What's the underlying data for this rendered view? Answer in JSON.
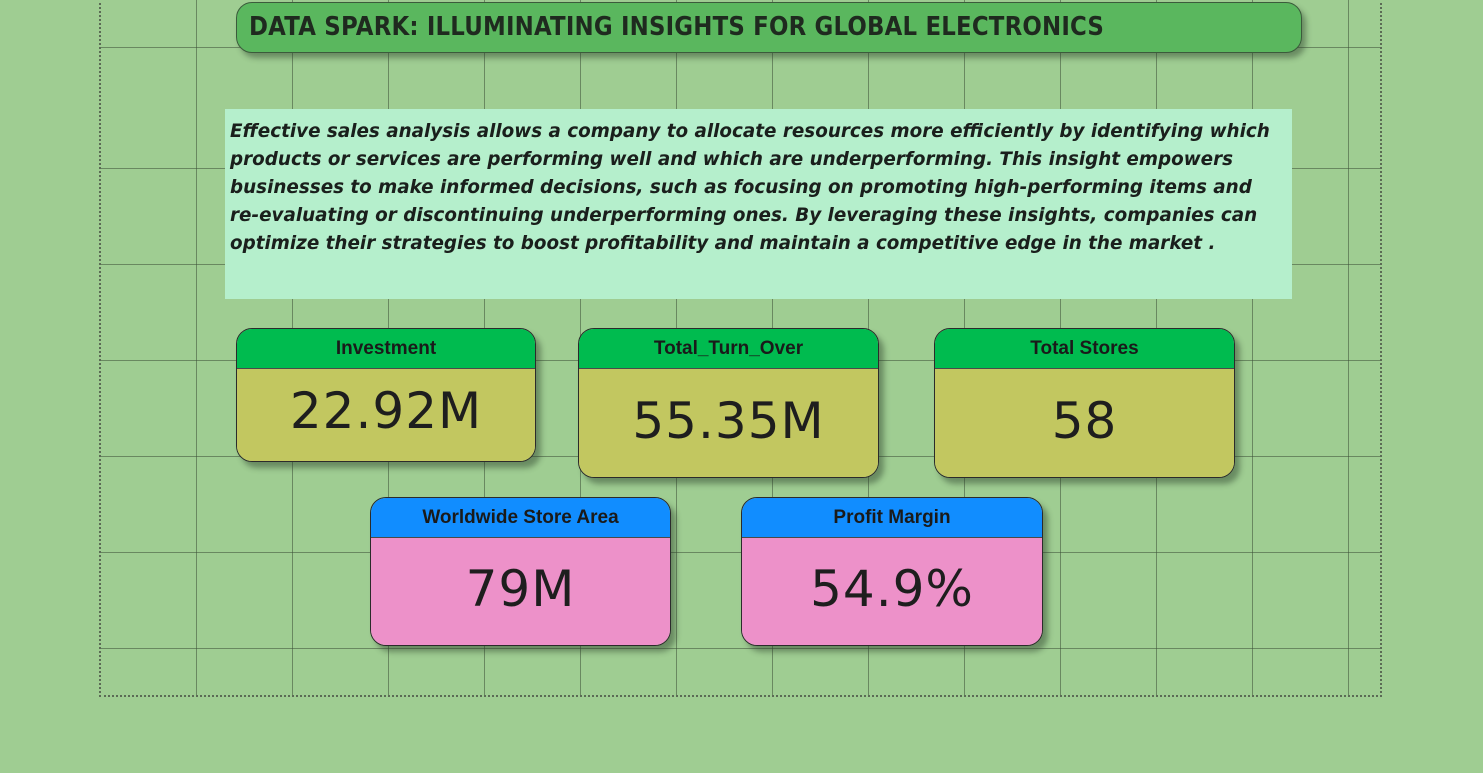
{
  "title": "DATA SPARK: ILLUMINATING INSIGHTS FOR GLOBAL ELECTRONICS",
  "description": "Effective sales analysis allows a company to allocate resources more efficiently by identifying which products or services are performing well and which are underperforming. This insight empowers businesses to make informed decisions, such as focusing on promoting high-performing items and re-evaluating or discontinuing underperforming ones. By leveraging these insights, companies can optimize their strategies to boost profitability and maintain a competitive edge in the market .",
  "kpis": [
    {
      "label": "Investment",
      "value": "22.92M"
    },
    {
      "label": "Total_Turn_Over",
      "value": "55.35M"
    },
    {
      "label": "Total Stores",
      "value": "58"
    },
    {
      "label": "Worldwide Store Area",
      "value": "79M"
    },
    {
      "label": "Profit Margin",
      "value": "54.9%"
    }
  ],
  "colors": {
    "background": "#9fcd92",
    "title_bar": "#5ab75e",
    "description_bg": "#b5efcc",
    "kpi_header_green": "#00bb4f",
    "kpi_body_olive": "#c2c760",
    "kpi_header_blue": "#118dff",
    "kpi_body_pink": "#ed91c9"
  }
}
